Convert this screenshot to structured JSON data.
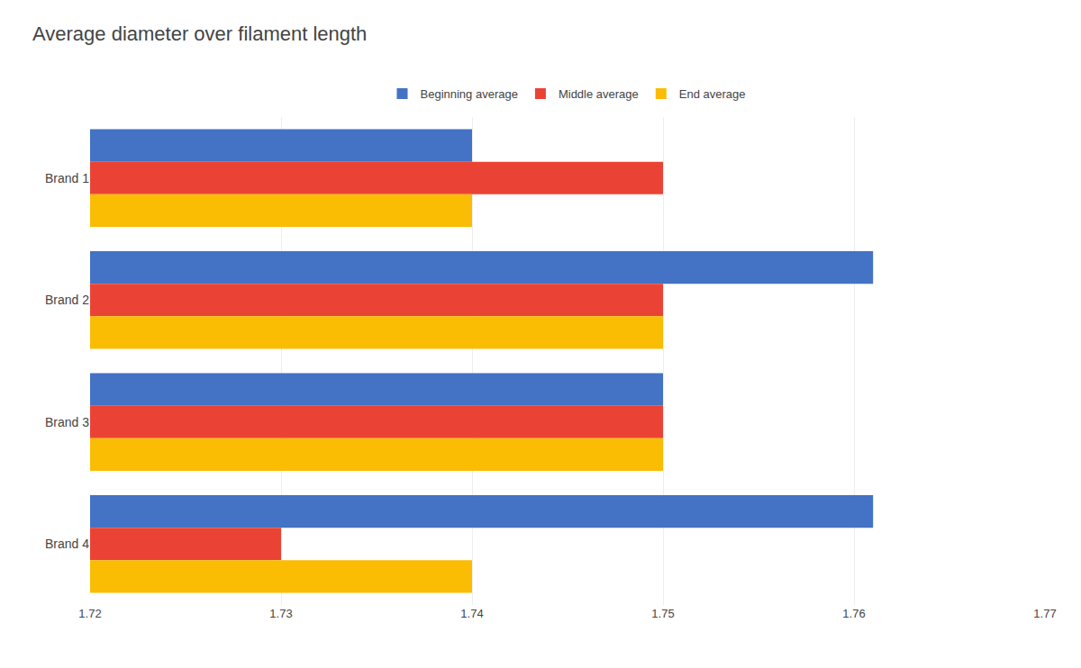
{
  "chart_data": {
    "type": "bar",
    "orientation": "horizontal",
    "title": "Average diameter over filament length",
    "categories": [
      "Brand 1",
      "Brand 2",
      "Brand 3",
      "Brand 4"
    ],
    "series": [
      {
        "name": "Beginning average",
        "color": "#4472C4",
        "values": [
          1.74,
          1.761,
          1.75,
          1.761
        ]
      },
      {
        "name": "Middle average",
        "color": "#EA4335",
        "values": [
          1.75,
          1.75,
          1.75,
          1.73
        ]
      },
      {
        "name": "End average",
        "color": "#FBBC04",
        "values": [
          1.74,
          1.75,
          1.75,
          1.74
        ]
      }
    ],
    "xlim": [
      1.72,
      1.77
    ],
    "xticks": [
      1.72,
      1.73,
      1.74,
      1.75,
      1.76,
      1.77
    ],
    "grid": true,
    "legend": "top"
  }
}
